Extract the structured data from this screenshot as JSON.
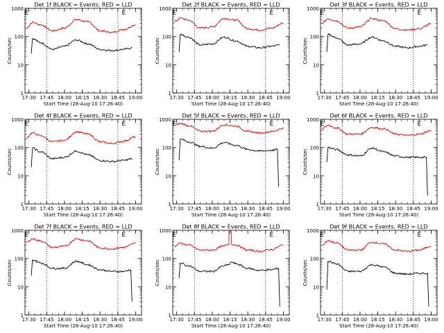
{
  "colors": {
    "events": "#000000",
    "lld": "#dd0000",
    "axis": "#000000"
  },
  "chart_data": [
    {
      "type": "line",
      "title": "Det 1f BLACK = Events, RED = LLD",
      "xlabel": "Start Time (28-Aug-10 17:26:40)",
      "ylabel": "Counts/sec",
      "ylim": [
        1,
        1000
      ],
      "yscale": "log",
      "x_ticks": [
        "17:30",
        "17:45",
        "18:00",
        "18:15",
        "18:30",
        "18:45",
        "19:00"
      ],
      "y_ticks": [
        "1",
        "10",
        "100",
        "1000"
      ],
      "markers": [
        {
          "label": "E",
          "x": "17:28"
        },
        {
          "label": "E",
          "x": "18:50"
        }
      ],
      "vlines": [
        "17:45",
        "18:45"
      ],
      "series": [
        {
          "name": "LLD",
          "color": "red",
          "x": [
            "17:28",
            "17:33",
            "17:40",
            "17:50",
            "18:00",
            "18:10",
            "18:20",
            "18:30",
            "18:40",
            "18:50",
            "19:00"
          ],
          "y": [
            200,
            320,
            260,
            160,
            200,
            400,
            330,
            160,
            140,
            180,
            260
          ]
        },
        {
          "name": "Events",
          "color": "black",
          "x": [
            "17:32",
            "17:33",
            "17:40",
            "17:50",
            "18:00",
            "18:10",
            "18:20",
            "18:30",
            "18:40",
            "18:50",
            "18:57"
          ],
          "y": [
            25,
            85,
            60,
            35,
            45,
            75,
            55,
            35,
            32,
            35,
            40
          ]
        }
      ]
    },
    {
      "type": "line",
      "title": "Det 2f BLACK = Events, RED = LLD",
      "xlabel": "Start Time (28-Aug-10 17:26:40)",
      "ylabel": "Counts/sec",
      "ylim": [
        1,
        1000
      ],
      "yscale": "log",
      "x_ticks": [
        "17:30",
        "17:45",
        "18:00",
        "18:15",
        "18:30",
        "18:45",
        "19:00"
      ],
      "y_ticks": [
        "1",
        "10",
        "100",
        "1000"
      ],
      "markers": [
        {
          "label": "E",
          "x": "17:28"
        },
        {
          "label": "E",
          "x": "18:50"
        }
      ],
      "vlines": [
        "17:45",
        "18:45"
      ],
      "series": [
        {
          "name": "LLD",
          "color": "red",
          "x": [
            "17:28",
            "17:33",
            "17:40",
            "17:50",
            "18:00",
            "18:10",
            "18:20",
            "18:30",
            "18:40",
            "18:50",
            "19:00"
          ],
          "y": [
            330,
            450,
            380,
            200,
            220,
            440,
            380,
            190,
            170,
            200,
            300
          ]
        },
        {
          "name": "Events",
          "color": "black",
          "x": [
            "17:32",
            "17:33",
            "17:40",
            "17:50",
            "18:00",
            "18:10",
            "18:20",
            "18:30",
            "18:40",
            "18:50",
            "18:57"
          ],
          "y": [
            28,
            120,
            95,
            50,
            55,
            95,
            70,
            45,
            40,
            45,
            50
          ]
        }
      ]
    },
    {
      "type": "line",
      "title": "Det 3f BLACK = Events, RED = LLD",
      "xlabel": "Start Time (28-Aug-10 17:26:40)",
      "ylabel": "Counts/sec",
      "ylim": [
        1,
        1000
      ],
      "yscale": "log",
      "x_ticks": [
        "17:30",
        "17:45",
        "18:00",
        "18:15",
        "18:30",
        "18:45",
        "19:00"
      ],
      "y_ticks": [
        "1",
        "10",
        "100",
        "1000"
      ],
      "markers": [
        {
          "label": "E",
          "x": "17:28"
        },
        {
          "label": "E",
          "x": "18:50"
        }
      ],
      "vlines": [
        "17:45",
        "18:45"
      ],
      "series": [
        {
          "name": "LLD",
          "color": "red",
          "x": [
            "17:28",
            "17:33",
            "17:40",
            "17:50",
            "18:00",
            "18:10",
            "18:20",
            "18:30",
            "18:40",
            "18:50",
            "19:00"
          ],
          "y": [
            300,
            430,
            360,
            200,
            220,
            430,
            360,
            190,
            170,
            190,
            280
          ]
        },
        {
          "name": "Events",
          "color": "black",
          "x": [
            "17:32",
            "17:33",
            "17:40",
            "17:50",
            "18:00",
            "18:10",
            "18:20",
            "18:30",
            "18:40",
            "18:50",
            "18:57"
          ],
          "y": [
            28,
            120,
            90,
            50,
            55,
            95,
            70,
            45,
            40,
            45,
            50
          ]
        }
      ]
    },
    {
      "type": "line",
      "title": "Det 4f BLACK = Events, RED = LLD",
      "xlabel": "Start Time (28-Aug-10 17:26:40)",
      "ylabel": "Counts/sec",
      "ylim": [
        1,
        1000
      ],
      "yscale": "log",
      "x_ticks": [
        "17:30",
        "17:45",
        "18:00",
        "18:15",
        "18:30",
        "18:45",
        "19:00"
      ],
      "y_ticks": [
        "1",
        "10",
        "100",
        "1000"
      ],
      "markers": [
        {
          "label": "E",
          "x": "17:28"
        },
        {
          "label": "E",
          "x": "18:50"
        }
      ],
      "vlines": [
        "17:45",
        "18:45"
      ],
      "series": [
        {
          "name": "LLD",
          "color": "red",
          "x": [
            "17:28",
            "17:33",
            "17:40",
            "17:50",
            "18:00",
            "18:10",
            "18:20",
            "18:30",
            "18:40",
            "18:50",
            "19:00"
          ],
          "y": [
            230,
            330,
            260,
            160,
            180,
            360,
            300,
            160,
            140,
            170,
            240
          ]
        },
        {
          "name": "Events",
          "color": "black",
          "x": [
            "17:32",
            "17:33",
            "17:40",
            "17:50",
            "18:00",
            "18:10",
            "18:20",
            "18:30",
            "18:40",
            "18:50",
            "18:57"
          ],
          "y": [
            20,
            95,
            70,
            40,
            45,
            75,
            55,
            35,
            32,
            35,
            40
          ]
        }
      ]
    },
    {
      "type": "line",
      "title": "Det 5f BLACK = Events, RED = LLD",
      "xlabel": "Start Time (28-Aug-10 17:26:40)",
      "ylabel": "Counts/sec",
      "ylim": [
        1,
        1000
      ],
      "yscale": "log",
      "x_ticks": [
        "17:30",
        "17:45",
        "18:00",
        "18:15",
        "18:30",
        "18:45",
        "19:00"
      ],
      "y_ticks": [
        "1",
        "10",
        "100",
        "1000"
      ],
      "markers": [
        {
          "label": "E",
          "x": "17:28"
        },
        {
          "label": "E",
          "x": "18:50"
        }
      ],
      "vlines": [
        "17:45",
        "18:45"
      ],
      "series": [
        {
          "name": "LLD",
          "color": "red",
          "x": [
            "17:28",
            "17:33",
            "17:40",
            "17:50",
            "18:00",
            "18:10",
            "18:20",
            "18:30",
            "18:40",
            "18:50",
            "19:00"
          ],
          "y": [
            600,
            720,
            600,
            380,
            380,
            640,
            580,
            370,
            330,
            370,
            480
          ]
        },
        {
          "name": "Events",
          "color": "black",
          "x": [
            "17:32",
            "17:33",
            "17:40",
            "17:50",
            "18:00",
            "18:10",
            "18:20",
            "18:30",
            "18:40",
            "18:50",
            "18:55",
            "18:56"
          ],
          "y": [
            35,
            200,
            160,
            110,
            95,
            150,
            120,
            85,
            75,
            80,
            85,
            4
          ]
        }
      ]
    },
    {
      "type": "line",
      "title": "Det 6f BLACK = Events, RED = LLD",
      "xlabel": "Start Time (28-Aug-10 17:26:40)",
      "ylabel": "Counts/sec",
      "ylim": [
        1,
        1000
      ],
      "yscale": "log",
      "x_ticks": [
        "17:30",
        "17:45",
        "18:00",
        "18:15",
        "18:30",
        "18:45",
        "19:00"
      ],
      "y_ticks": [
        "1",
        "10",
        "100",
        "1000"
      ],
      "markers": [
        {
          "label": "E",
          "x": "17:28"
        },
        {
          "label": "E",
          "x": "18:50"
        }
      ],
      "vlines": [
        "17:45",
        "18:45"
      ],
      "series": [
        {
          "name": "LLD",
          "color": "red",
          "x": [
            "17:28",
            "17:33",
            "17:40",
            "17:50",
            "18:00",
            "18:10",
            "18:20",
            "18:30",
            "18:40",
            "18:50",
            "19:00"
          ],
          "y": [
            450,
            620,
            500,
            300,
            300,
            520,
            460,
            300,
            270,
            300,
            400
          ]
        },
        {
          "name": "Events",
          "color": "black",
          "x": [
            "17:32",
            "17:33",
            "17:40",
            "17:50",
            "18:00",
            "18:10",
            "18:20",
            "18:30",
            "18:40",
            "18:50",
            "18:56",
            "18:57"
          ],
          "y": [
            30,
            100,
            85,
            55,
            50,
            95,
            70,
            50,
            45,
            45,
            45,
            2
          ]
        }
      ]
    },
    {
      "type": "line",
      "title": "Det 7f BLACK = Events, RED = LLD",
      "xlabel": "Start Time (28-Aug-10 17:26:40)",
      "ylabel": "Counts/sec",
      "ylim": [
        1,
        1000
      ],
      "yscale": "log",
      "x_ticks": [
        "17:30",
        "17:45",
        "18:00",
        "18:15",
        "18:30",
        "18:45",
        "19:00"
      ],
      "y_ticks": [
        "1",
        "10",
        "100",
        "1000"
      ],
      "markers": [
        {
          "label": "E",
          "x": "17:28"
        },
        {
          "label": "E",
          "x": "18:50"
        }
      ],
      "vlines": [
        "17:45",
        "18:45"
      ],
      "series": [
        {
          "name": "LLD",
          "color": "red",
          "x": [
            "17:28",
            "17:33",
            "17:40",
            "17:50",
            "18:00",
            "18:10",
            "18:20",
            "18:30",
            "18:40",
            "18:50",
            "19:00"
          ],
          "y": [
            380,
            500,
            420,
            250,
            270,
            500,
            420,
            240,
            220,
            250,
            350
          ]
        },
        {
          "name": "Events",
          "color": "black",
          "x": [
            "17:32",
            "17:33",
            "17:40",
            "17:50",
            "18:00",
            "18:10",
            "18:20",
            "18:30",
            "18:40",
            "18:50",
            "18:56",
            "18:57"
          ],
          "y": [
            25,
            90,
            70,
            45,
            45,
            80,
            60,
            40,
            35,
            35,
            40,
            3
          ]
        }
      ]
    },
    {
      "type": "line",
      "title": "Det 8f BLACK = Events, RED = LLD",
      "xlabel": "Start Time (28-Aug-10 17:26:40)",
      "ylabel": "Counts/sec",
      "ylim": [
        1,
        1000
      ],
      "yscale": "log",
      "x_ticks": [
        "17:30",
        "17:45",
        "18:00",
        "18:15",
        "18:30",
        "18:45",
        "19:00"
      ],
      "y_ticks": [
        "1",
        "10",
        "100",
        "1000"
      ],
      "markers": [
        {
          "label": "E",
          "x": "17:28"
        },
        {
          "label": "E",
          "x": "18:50"
        }
      ],
      "vlines": [
        "17:45",
        "18:45"
      ],
      "series": [
        {
          "name": "LLD",
          "color": "red",
          "x": [
            "17:28",
            "17:33",
            "17:40",
            "17:50",
            "18:00",
            "18:10",
            "18:14",
            "18:14",
            "18:16",
            "18:16",
            "18:20",
            "18:30",
            "18:40",
            "18:50",
            "19:00"
          ],
          "y": [
            260,
            350,
            300,
            200,
            200,
            280,
            320,
            1000,
            1000,
            330,
            300,
            200,
            180,
            210,
            300
          ]
        },
        {
          "name": "Events",
          "color": "black",
          "x": [
            "17:32",
            "17:33",
            "17:40",
            "17:50",
            "18:00",
            "18:10",
            "18:14",
            "18:16",
            "18:20",
            "18:30",
            "18:40",
            "18:50",
            "18:56",
            "18:57"
          ],
          "y": [
            20,
            70,
            55,
            35,
            35,
            55,
            60,
            75,
            65,
            45,
            38,
            40,
            45,
            2
          ]
        }
      ]
    },
    {
      "type": "line",
      "title": "Det 9f BLACK = Events, RED = LLD",
      "xlabel": "Start Time (28-Aug-10 17:26:40)",
      "ylabel": "Counts/sec",
      "ylim": [
        1,
        1000
      ],
      "yscale": "log",
      "x_ticks": [
        "17:30",
        "17:45",
        "18:00",
        "18:15",
        "18:30",
        "18:45",
        "19:00"
      ],
      "y_ticks": [
        "1",
        "10",
        "100",
        "1000"
      ],
      "markers": [
        {
          "label": "E",
          "x": "17:28"
        },
        {
          "label": "E",
          "x": "18:50"
        }
      ],
      "vlines": [
        "17:45",
        "18:45"
      ],
      "series": [
        {
          "name": "LLD",
          "color": "red",
          "x": [
            "17:28",
            "17:33",
            "17:40",
            "17:50",
            "18:00",
            "18:10",
            "18:20",
            "18:30",
            "18:40",
            "18:50",
            "19:00"
          ],
          "y": [
            300,
            430,
            360,
            200,
            200,
            380,
            330,
            200,
            180,
            200,
            280
          ]
        },
        {
          "name": "Events",
          "color": "black",
          "x": [
            "17:32",
            "17:33",
            "17:40",
            "17:50",
            "18:00",
            "18:10",
            "18:20",
            "18:30",
            "18:40",
            "18:50",
            "18:57",
            "18:58"
          ],
          "y": [
            8,
            80,
            65,
            35,
            35,
            60,
            50,
            30,
            28,
            30,
            30,
            2
          ]
        }
      ]
    }
  ]
}
